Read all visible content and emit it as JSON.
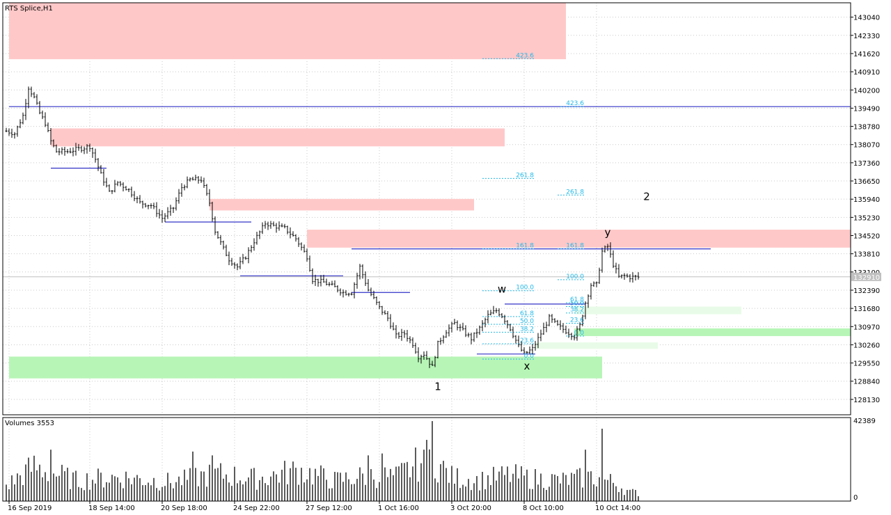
{
  "chart_data": {
    "type": "candlestick",
    "symbol_label": "RTS Splice,H1",
    "volume_label": "Volumes 3553",
    "price_axis": {
      "ylim": [
        127530,
        143600
      ],
      "ticks": [
        143040,
        142330,
        141620,
        140910,
        140200,
        139490,
        138780,
        138070,
        137360,
        136650,
        135940,
        135230,
        134520,
        133810,
        133100,
        132390,
        131680,
        130970,
        130260,
        129550,
        128840,
        128130
      ],
      "tick_labels": [
        "143040",
        "142330",
        "141620",
        "140910",
        "140200",
        "139490",
        "138780",
        "138070",
        "137360",
        "136650",
        "135940",
        "135230",
        "134520",
        "133810",
        "133100",
        "132390",
        "131680",
        "130970",
        "130260",
        "129550",
        "128840",
        "128130"
      ],
      "current_price": 132910,
      "current_price_label": "132910"
    },
    "volume_axis": {
      "ylim": [
        0,
        42389
      ],
      "tick_labels": [
        "42389",
        "0"
      ],
      "ticks": [
        42389,
        0
      ]
    },
    "time_axis": {
      "bar_count": 228,
      "labels": [
        {
          "bar": 1,
          "text": "16 Sep 2019"
        },
        {
          "bar": 30,
          "text": "18 Sep 14:00"
        },
        {
          "bar": 56,
          "text": "20 Sep 18:00"
        },
        {
          "bar": 82,
          "text": "24 Sep 22:00"
        },
        {
          "bar": 108,
          "text": "27 Sep 12:00"
        },
        {
          "bar": 134,
          "text": "1 Oct 16:00"
        },
        {
          "bar": 160,
          "text": "3 Oct 20:00"
        },
        {
          "bar": 186,
          "text": "8 Oct 10:00"
        },
        {
          "bar": 212,
          "text": "10 Oct 14:00"
        }
      ]
    },
    "price_path": [
      [
        0,
        138600
      ],
      [
        3,
        138500
      ],
      [
        6,
        139200
      ],
      [
        8,
        140300
      ],
      [
        10,
        139900
      ],
      [
        12,
        139300
      ],
      [
        14,
        138900
      ],
      [
        16,
        138200
      ],
      [
        18,
        137800
      ],
      [
        22,
        137800
      ],
      [
        26,
        137900
      ],
      [
        30,
        138000
      ],
      [
        32,
        137500
      ],
      [
        34,
        136900
      ],
      [
        37,
        136200
      ],
      [
        40,
        136600
      ],
      [
        44,
        136300
      ],
      [
        48,
        135800
      ],
      [
        52,
        135700
      ],
      [
        56,
        135200
      ],
      [
        60,
        135600
      ],
      [
        63,
        136400
      ],
      [
        66,
        136700
      ],
      [
        70,
        136700
      ],
      [
        73,
        135800
      ],
      [
        75,
        134700
      ],
      [
        78,
        134000
      ],
      [
        80,
        133600
      ],
      [
        83,
        133300
      ],
      [
        86,
        133700
      ],
      [
        89,
        134300
      ],
      [
        93,
        135000
      ],
      [
        96,
        134900
      ],
      [
        100,
        134800
      ],
      [
        104,
        134400
      ],
      [
        108,
        133700
      ],
      [
        110,
        132800
      ],
      [
        114,
        132700
      ],
      [
        118,
        132500
      ],
      [
        121,
        132300
      ],
      [
        124,
        132300
      ],
      [
        127,
        133300
      ],
      [
        130,
        132400
      ],
      [
        134,
        131700
      ],
      [
        137,
        131300
      ],
      [
        140,
        130600
      ],
      [
        143,
        130700
      ],
      [
        146,
        130300
      ],
      [
        148,
        129800
      ],
      [
        150,
        129900
      ],
      [
        153,
        129400
      ],
      [
        155,
        130300
      ],
      [
        158,
        130800
      ],
      [
        161,
        131100
      ],
      [
        164,
        130800
      ],
      [
        167,
        130500
      ],
      [
        170,
        130900
      ],
      [
        173,
        131400
      ],
      [
        176,
        131600
      ],
      [
        178,
        131400
      ],
      [
        181,
        130900
      ],
      [
        184,
        130200
      ],
      [
        186,
        129900
      ],
      [
        189,
        130100
      ],
      [
        192,
        130700
      ],
      [
        195,
        131300
      ],
      [
        198,
        131000
      ],
      [
        201,
        130800
      ],
      [
        204,
        130600
      ],
      [
        206,
        131000
      ],
      [
        208,
        131900
      ],
      [
        210,
        132600
      ],
      [
        212,
        132600
      ],
      [
        214,
        133900
      ],
      [
        216,
        134100
      ],
      [
        218,
        133400
      ],
      [
        220,
        132900
      ],
      [
        222,
        132950
      ],
      [
        224,
        132900
      ]
    ],
    "volume_path": [
      [
        0,
        9000
      ],
      [
        10,
        20000
      ],
      [
        25,
        12000
      ],
      [
        40,
        14000
      ],
      [
        60,
        11000
      ],
      [
        75,
        16000
      ],
      [
        90,
        13000
      ],
      [
        105,
        18000
      ],
      [
        118,
        12000
      ],
      [
        130,
        15000
      ],
      [
        140,
        14000
      ],
      [
        152,
        26000
      ],
      [
        160,
        14000
      ],
      [
        170,
        12000
      ],
      [
        180,
        15000
      ],
      [
        190,
        13000
      ],
      [
        200,
        12000
      ],
      [
        210,
        14000
      ],
      [
        218,
        11000
      ],
      [
        224,
        5000
      ]
    ],
    "volume_spikes": [
      [
        16,
        27000
      ],
      [
        67,
        26000
      ],
      [
        74,
        24000
      ],
      [
        130,
        24000
      ],
      [
        135,
        25000
      ],
      [
        150,
        27000
      ],
      [
        153,
        42000
      ],
      [
        214,
        38000
      ],
      [
        208,
        27000
      ]
    ],
    "supply_zones": [
      {
        "from_bar": 1,
        "to_bar": 201,
        "top": 143600,
        "bottom": 141400
      },
      {
        "from_bar": 16,
        "to_bar": 179,
        "top": 138700,
        "bottom": 138000
      },
      {
        "from_bar": 73,
        "to_bar": 168,
        "top": 135950,
        "bottom": 135500
      },
      {
        "from_bar": 108,
        "to_bar": 305,
        "top": 134750,
        "bottom": 134050
      }
    ],
    "demand_zones": [
      {
        "from_bar": 1,
        "to_bar": 214,
        "top": 129800,
        "bottom": 128950,
        "strength": "strong"
      },
      {
        "from_bar": 204,
        "to_bar": 305,
        "top": 130900,
        "bottom": 130600,
        "strength": "strong"
      },
      {
        "from_bar": 204,
        "to_bar": 264,
        "top": 131750,
        "bottom": 131450,
        "strength": "weak"
      },
      {
        "from_bar": 190,
        "to_bar": 234,
        "top": 130350,
        "bottom": 130100,
        "strength": "weak"
      }
    ],
    "horizontal_lines": [
      {
        "from_bar": 1,
        "to_bar": 305,
        "price": 139550
      },
      {
        "from_bar": 16,
        "to_bar": 36,
        "price": 137150
      },
      {
        "from_bar": 57,
        "to_bar": 88,
        "price": 135050
      },
      {
        "from_bar": 84,
        "to_bar": 121,
        "price": 132950
      },
      {
        "from_bar": 124,
        "to_bar": 145,
        "price": 132300
      },
      {
        "from_bar": 124,
        "to_bar": 253,
        "price": 134000
      },
      {
        "from_bar": 179,
        "to_bar": 208,
        "price": 131850
      },
      {
        "from_bar": 169,
        "to_bar": 190,
        "price": 129900
      }
    ],
    "fib_levels": [
      {
        "from_bar": 171,
        "to_bar": 190,
        "price": 141420,
        "label": "423.6"
      },
      {
        "from_bar": 199,
        "to_bar": 208,
        "price": 139550,
        "label": "423.6"
      },
      {
        "from_bar": 171,
        "to_bar": 190,
        "price": 136750,
        "label": "261.8"
      },
      {
        "from_bar": 198,
        "to_bar": 208,
        "price": 136100,
        "label": "261.8"
      },
      {
        "from_bar": 171,
        "to_bar": 190,
        "price": 134000,
        "label": "161.8"
      },
      {
        "from_bar": 198,
        "to_bar": 208,
        "price": 134000,
        "label": "161.8"
      },
      {
        "from_bar": 171,
        "to_bar": 190,
        "price": 132370,
        "label": "100.0"
      },
      {
        "from_bar": 198,
        "to_bar": 208,
        "price": 132800,
        "label": "100.0"
      },
      {
        "from_bar": 171,
        "to_bar": 190,
        "price": 131360,
        "label": "61.8"
      },
      {
        "from_bar": 171,
        "to_bar": 190,
        "price": 131060,
        "label": "50.0"
      },
      {
        "from_bar": 171,
        "to_bar": 190,
        "price": 130750,
        "label": "38.2"
      },
      {
        "from_bar": 171,
        "to_bar": 190,
        "price": 130300,
        "label": "23.6"
      },
      {
        "from_bar": 171,
        "to_bar": 190,
        "price": 129700,
        "label": "0.0"
      },
      {
        "from_bar": 201,
        "to_bar": 208,
        "price": 131900,
        "label": "61.8"
      },
      {
        "from_bar": 201,
        "to_bar": 208,
        "price": 131750,
        "label": "50.0"
      },
      {
        "from_bar": 201,
        "to_bar": 208,
        "price": 131500,
        "label": "38.2"
      },
      {
        "from_bar": 201,
        "to_bar": 208,
        "price": 131100,
        "label": "23.6"
      },
      {
        "from_bar": 201,
        "to_bar": 208,
        "price": 130600,
        "label": "0.0"
      }
    ],
    "wave_labels": [
      {
        "text": "w",
        "bar": 178,
        "price": 132300
      },
      {
        "text": "x",
        "bar": 187,
        "price": 129300
      },
      {
        "text": "y",
        "bar": 216,
        "price": 134500
      },
      {
        "text": "1",
        "bar": 155,
        "price": 128500
      },
      {
        "text": "2",
        "bar": 230,
        "price": 135900
      }
    ],
    "colors": {
      "candle": "#000000",
      "supply_zone": "#ffc8c8",
      "demand_strong": "#b6f5b6",
      "demand_weak": "#e8fbe8",
      "level_line": "#3232c8",
      "fib": "#22b8e8",
      "grid": "#c8c8c8",
      "current_price_box": "#c0c0c0",
      "current_price_line": "#c0c0c0"
    }
  }
}
